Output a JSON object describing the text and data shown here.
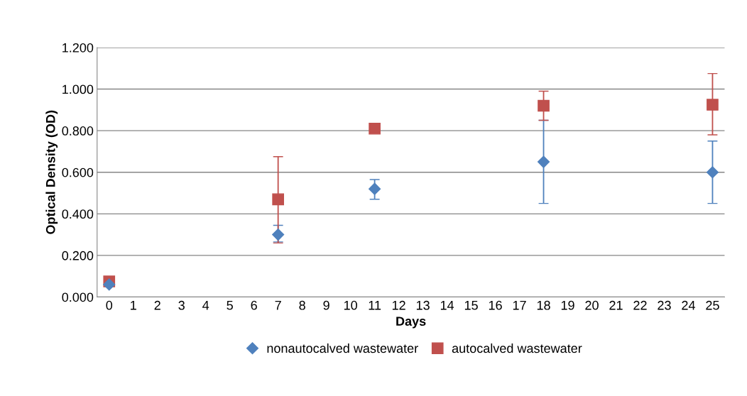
{
  "chart_data": {
    "type": "scatter",
    "xlabel": "Days",
    "ylabel": "Optical Density (OD)",
    "categories": [
      "0",
      "1",
      "2",
      "3",
      "4",
      "5",
      "6",
      "7",
      "8",
      "9",
      "10",
      "11",
      "12",
      "13",
      "14",
      "15",
      "16",
      "17",
      "18",
      "19",
      "20",
      "21",
      "22",
      "23",
      "24",
      "25"
    ],
    "series": [
      {
        "name": "nonautocalved wastewater",
        "color": "#4f81bd",
        "marker": "diamond",
        "values": [
          0.06,
          null,
          null,
          null,
          null,
          null,
          null,
          0.3,
          null,
          null,
          null,
          0.52,
          null,
          null,
          null,
          null,
          null,
          null,
          0.65,
          null,
          null,
          null,
          null,
          null,
          null,
          0.6
        ],
        "errors": [
          null,
          null,
          null,
          null,
          null,
          null,
          null,
          [
            0.265,
            0.345
          ],
          null,
          null,
          null,
          [
            0.47,
            0.565
          ],
          null,
          null,
          null,
          null,
          null,
          null,
          [
            0.45,
            0.85
          ],
          null,
          null,
          null,
          null,
          null,
          null,
          [
            0.45,
            0.75
          ]
        ]
      },
      {
        "name": "autocalved wastewater",
        "color": "#c0504d",
        "marker": "square",
        "values": [
          0.075,
          null,
          null,
          null,
          null,
          null,
          null,
          0.47,
          null,
          null,
          null,
          0.81,
          null,
          null,
          null,
          null,
          null,
          null,
          0.92,
          null,
          null,
          null,
          null,
          null,
          null,
          0.925
        ],
        "errors": [
          null,
          null,
          null,
          null,
          null,
          null,
          null,
          [
            0.26,
            0.675
          ],
          null,
          null,
          null,
          null,
          null,
          null,
          null,
          null,
          null,
          null,
          [
            0.85,
            0.99
          ],
          null,
          null,
          null,
          null,
          null,
          null,
          [
            0.78,
            1.075
          ]
        ]
      }
    ],
    "ylim": [
      0,
      1.2
    ],
    "yticks": [
      {
        "value": 0,
        "label": "0.000"
      },
      {
        "value": 0.2,
        "label": "0.200"
      },
      {
        "value": 0.4,
        "label": "0.400"
      },
      {
        "value": 0.6,
        "label": "0.600"
      },
      {
        "value": 0.8,
        "label": "0.800"
      },
      {
        "value": 1.0,
        "label": "1.000"
      },
      {
        "value": 1.2,
        "label": "1.200"
      }
    ],
    "grid": "y",
    "legend": "bottom"
  }
}
